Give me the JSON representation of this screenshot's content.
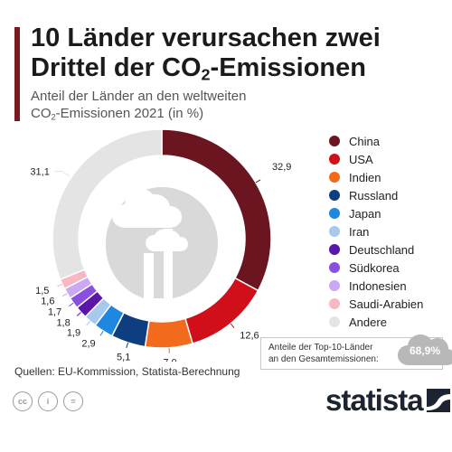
{
  "header": {
    "title_part1": "10 Länder verursachen zwei Drittel der CO",
    "title_sub": "2",
    "title_part2": "-Emissionen",
    "subtitle_line1": "Anteil der Länder an den weltweiten",
    "subtitle_co": "CO",
    "subtitle_sub": "2",
    "subtitle_rest": "-Emissionen 2021 (in %)"
  },
  "chart_data": {
    "type": "pie",
    "variant": "donut",
    "start_angle": "top, clockwise",
    "categories": [
      "China",
      "USA",
      "Indien",
      "Russland",
      "Japan",
      "Iran",
      "Deutschland",
      "Südkorea",
      "Indonesien",
      "Saudi-Arabien",
      "Andere"
    ],
    "values": [
      32.9,
      12.6,
      7.0,
      5.1,
      2.9,
      1.9,
      1.8,
      1.7,
      1.6,
      1.5,
      31.1
    ],
    "value_labels": [
      "32,9",
      "12,6",
      "7,0",
      "5,1",
      "2,9",
      "1,9",
      "1,8",
      "1,7",
      "1,6",
      "1,5",
      "31,1"
    ],
    "colors": [
      "#6b1520",
      "#d10f1a",
      "#f26b1d",
      "#0e3e80",
      "#1e87e0",
      "#a7c9ee",
      "#5a16a8",
      "#8a4fe0",
      "#caa8f3",
      "#f7b7c3",
      "#e4e4e4"
    ],
    "legend_position": "right",
    "title": "10 Länder verursachen zwei Drittel der CO₂-Emissionen",
    "subtitle": "Anteil der Länder an den weltweiten CO₂-Emissionen 2021 (in %)"
  },
  "legend": {
    "items": [
      {
        "label": "China",
        "color": "#6b1520"
      },
      {
        "label": "USA",
        "color": "#d10f1a"
      },
      {
        "label": "Indien",
        "color": "#f26b1d"
      },
      {
        "label": "Russland",
        "color": "#0e3e80"
      },
      {
        "label": "Japan",
        "color": "#1e87e0"
      },
      {
        "label": "Iran",
        "color": "#a7c9ee"
      },
      {
        "label": "Deutschland",
        "color": "#5a16a8"
      },
      {
        "label": "Südkorea",
        "color": "#8a4fe0"
      },
      {
        "label": "Indonesien",
        "color": "#caa8f3"
      },
      {
        "label": "Saudi-Arabien",
        "color": "#f7b7c3"
      },
      {
        "label": "Andere",
        "color": "#e4e4e4"
      }
    ]
  },
  "callout": {
    "text_line1": "Anteile der Top-10-Länder",
    "text_line2": "an den Gesamtemissionen:",
    "value": "68,9%",
    "icon": "cloud-icon"
  },
  "footer": {
    "sources": "Quellen: EU-Kommission, Statista-Berechnung",
    "license_icons": [
      "cc-icon",
      "by-icon",
      "nd-icon"
    ],
    "license_labels": [
      "cc",
      "i",
      "="
    ],
    "brand": "statista",
    "brand_icon": "statista-logo-icon"
  },
  "colors": {
    "accent": "#7a1a1f",
    "brand": "#1c2331",
    "centre_illustration": "#d9d9d9"
  }
}
